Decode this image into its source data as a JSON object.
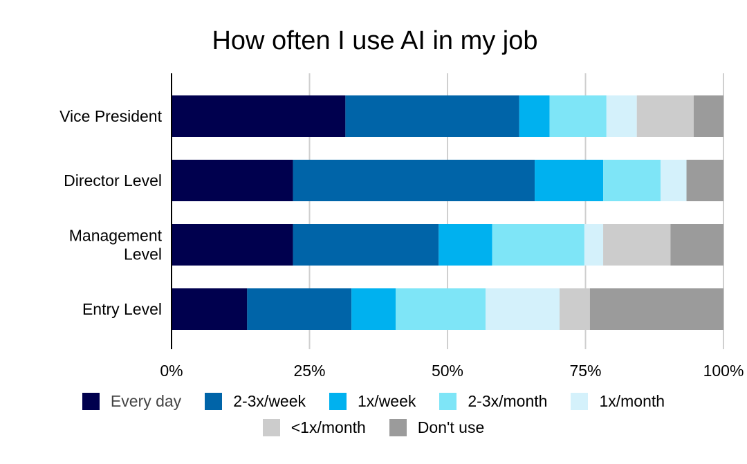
{
  "chart_data": {
    "type": "bar",
    "orientation": "horizontal",
    "stacked": true,
    "normalized": true,
    "title": "How often I use AI in my job",
    "xlabel": "",
    "ylabel": "",
    "xlim": [
      0,
      100
    ],
    "x_ticks": [
      "0%",
      "25%",
      "50%",
      "75%",
      "100%"
    ],
    "x_tick_values": [
      0,
      25,
      50,
      75,
      100
    ],
    "grid": true,
    "legend_position": "bottom",
    "categories": [
      {
        "label_lines": [
          "Vice President"
        ]
      },
      {
        "label_lines": [
          "Director Level"
        ]
      },
      {
        "label_lines": [
          "Management",
          "Level"
        ]
      },
      {
        "label_lines": [
          "Entry Level"
        ]
      }
    ],
    "series": [
      {
        "name": "Every day",
        "color": "#00004e",
        "values": [
          31.5,
          22.0,
          22.0,
          13.7
        ]
      },
      {
        "name": "2-3x/week",
        "color": "#0064a8",
        "values": [
          31.5,
          43.8,
          26.4,
          18.9
        ]
      },
      {
        "name": "1x/week",
        "color": "#00b1ef",
        "values": [
          5.5,
          12.4,
          9.7,
          8.0
        ]
      },
      {
        "name": "2-3x/month",
        "color": "#7ee5f7",
        "values": [
          10.3,
          10.4,
          16.7,
          16.3
        ]
      },
      {
        "name": "1x/month",
        "color": "#d4f1fb",
        "values": [
          5.5,
          4.7,
          3.4,
          13.4
        ]
      },
      {
        "name": "<1x/month",
        "color": "#cccccc",
        "values": [
          10.3,
          0.0,
          12.2,
          5.5
        ]
      },
      {
        "name": "Don't use",
        "color": "#9b9b9b",
        "values": [
          5.4,
          6.7,
          9.6,
          24.2
        ]
      }
    ]
  }
}
